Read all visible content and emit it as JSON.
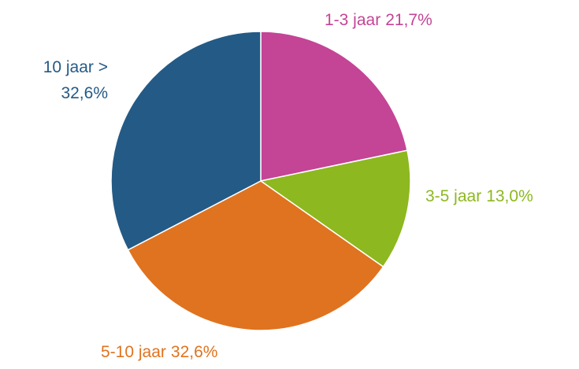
{
  "chart_data": {
    "type": "pie",
    "categories": [
      "1-3 jaar",
      "3-5 jaar",
      "5-10 jaar",
      "10 jaar >"
    ],
    "values": [
      21.7,
      13.0,
      32.6,
      32.6
    ],
    "value_labels": [
      "21,7%",
      "13,0%",
      "32,6%",
      "32,6%"
    ],
    "colors": [
      "#c44496",
      "#8db81f",
      "#e0731f",
      "#245a86"
    ]
  }
}
